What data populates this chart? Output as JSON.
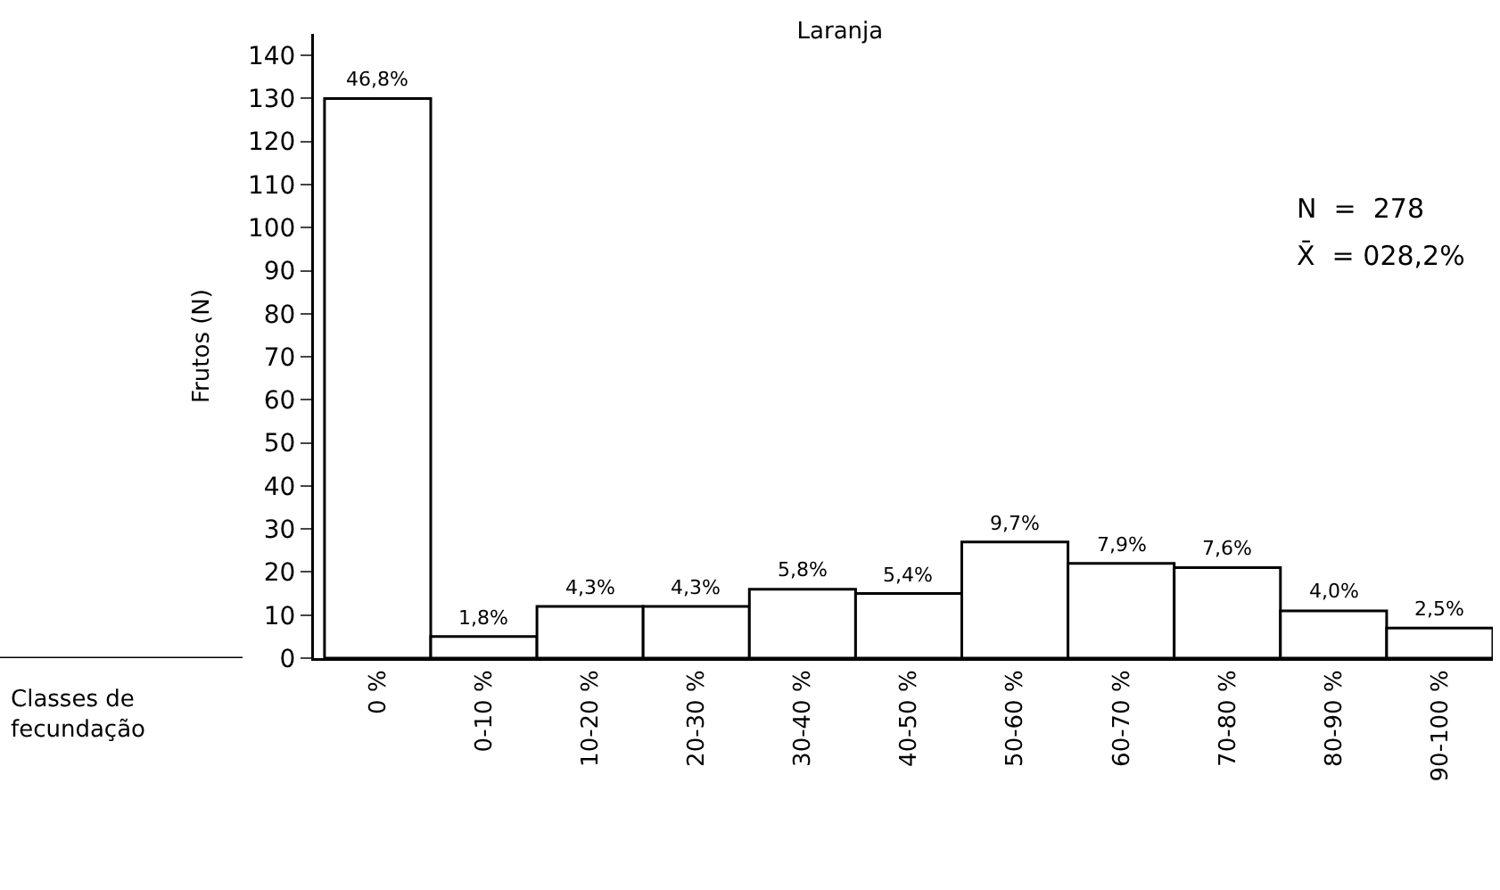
{
  "chart_data": {
    "type": "bar",
    "title": "Laranja",
    "xlabel": "Classes de fecundação",
    "ylabel": "Frutos (N)",
    "categories": [
      "0 %",
      "0-10 %",
      "10-20 %",
      "20-30 %",
      "30-40 %",
      "40-50 %",
      "50-60 %",
      "60-70 %",
      "70-80 %",
      "80-90 %",
      "90-100 %"
    ],
    "values": [
      130,
      5,
      12,
      12,
      16,
      15,
      27,
      22,
      21,
      11,
      7
    ],
    "color": "#ffffff",
    "ylim": [
      0,
      145
    ],
    "yticks": [
      0,
      10,
      20,
      30,
      40,
      50,
      60,
      70,
      80,
      90,
      100,
      110,
      120,
      130,
      140
    ],
    "annotations": [
      "N  =  278",
      "X̄  = 028,2%",
      {
        "text": "46,8%",
        "x": "0 %",
        "y": 130
      },
      {
        "text": "1,8%",
        "x": "0-10 %",
        "y": 5
      },
      {
        "text": "4,3%",
        "x": "10-20 %",
        "y": 12
      },
      {
        "text": "4,3%",
        "x": "20-30 %",
        "y": 12
      },
      {
        "text": "5,8%",
        "x": "30-40 %",
        "y": 16
      },
      {
        "text": "5,4%",
        "x": "40-50 %",
        "y": 15
      },
      {
        "text": "9,7%",
        "x": "50-60 %",
        "y": 27
      },
      {
        "text": "7,9%",
        "x": "60-70 %",
        "y": 22
      },
      {
        "text": "7,6%",
        "x": "70-80 %",
        "y": 21
      },
      {
        "text": "4,0%",
        "x": "80-90 %",
        "y": 11
      },
      {
        "text": "2,5%",
        "x": "90-100 %",
        "y": 7
      }
    ],
    "grid": false,
    "legend": false
  }
}
